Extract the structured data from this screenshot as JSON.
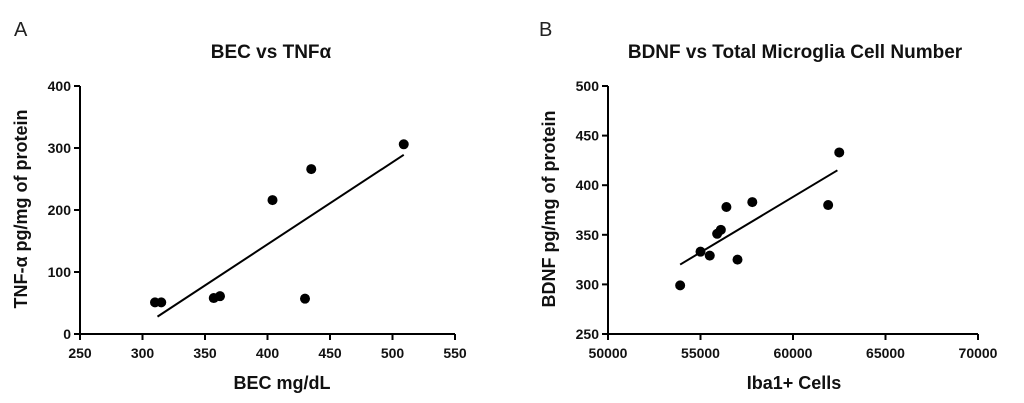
{
  "chart_data": [
    {
      "type": "scatter",
      "panel": "A",
      "title": "BEC vs TNFα",
      "xlabel": "BEC mg/dL",
      "ylabel": "TNF-α pg/mg of protein",
      "xlim": [
        250,
        550
      ],
      "ylim": [
        0,
        400
      ],
      "x_ticks": [
        250,
        300,
        350,
        400,
        450,
        500,
        550
      ],
      "y_ticks": [
        0,
        100,
        200,
        300,
        400
      ],
      "points": [
        {
          "x": 310,
          "y": 51
        },
        {
          "x": 315,
          "y": 51
        },
        {
          "x": 357,
          "y": 58
        },
        {
          "x": 362,
          "y": 61
        },
        {
          "x": 404,
          "y": 216
        },
        {
          "x": 430,
          "y": 57
        },
        {
          "x": 435,
          "y": 266
        },
        {
          "x": 509,
          "y": 306
        }
      ],
      "fit_line": {
        "x1": 312,
        "y1": 28,
        "x2": 509,
        "y2": 289
      },
      "grid": false
    },
    {
      "type": "scatter",
      "panel": "B",
      "title": "BDNF vs Total Microglia Cell Number",
      "xlabel": "Iba1+ Cells",
      "ylabel": "BDNF pg/mg of protein",
      "xlim": [
        50000,
        70000
      ],
      "ylim": [
        250,
        500
      ],
      "x_ticks": [
        50000,
        55000,
        60000,
        65000,
        70000
      ],
      "y_ticks": [
        250,
        300,
        350,
        400,
        450,
        500
      ],
      "points": [
        {
          "x": 53900,
          "y": 299
        },
        {
          "x": 55000,
          "y": 333
        },
        {
          "x": 55500,
          "y": 329
        },
        {
          "x": 55900,
          "y": 351
        },
        {
          "x": 56100,
          "y": 355
        },
        {
          "x": 56400,
          "y": 378
        },
        {
          "x": 57000,
          "y": 325
        },
        {
          "x": 57800,
          "y": 383
        },
        {
          "x": 61900,
          "y": 380
        },
        {
          "x": 62500,
          "y": 433
        }
      ],
      "fit_line": {
        "x1": 53900,
        "y1": 320,
        "x2": 62400,
        "y2": 415
      },
      "grid": false
    }
  ]
}
